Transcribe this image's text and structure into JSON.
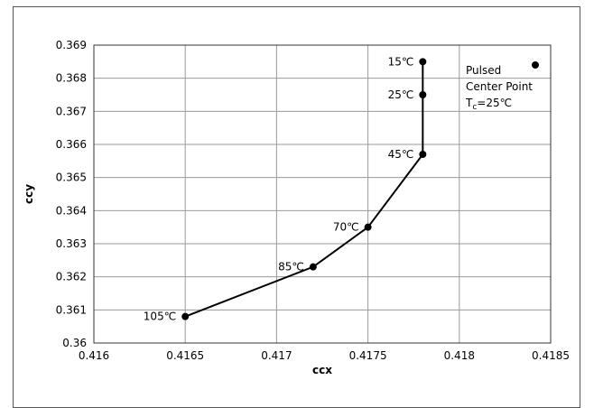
{
  "chart_data": {
    "type": "line",
    "xlabel": "ccx",
    "ylabel": "ccy",
    "xlim": [
      0.416,
      0.4185
    ],
    "ylim": [
      0.36,
      0.369
    ],
    "x_ticks": [
      "0.416",
      "0.4165",
      "0.417",
      "0.4175",
      "0.418",
      "0.4185"
    ],
    "y_ticks": [
      "0.36",
      "0.361",
      "0.362",
      "0.363",
      "0.364",
      "0.365",
      "0.366",
      "0.367",
      "0.368",
      "0.369"
    ],
    "grid": true,
    "legend_position": "top-right",
    "legend": {
      "lines": [
        "Pulsed",
        "Center Point"
      ],
      "tc_prefix": "T",
      "tc_subscript": "c",
      "tc_suffix": "=25℃"
    },
    "series": [
      {
        "name": "Pulsed Center Point T c=25℃",
        "points": [
          {
            "x": 0.4165,
            "y": 0.3608,
            "label": "105℃"
          },
          {
            "x": 0.4172,
            "y": 0.3623,
            "label": "85℃"
          },
          {
            "x": 0.4175,
            "y": 0.3635,
            "label": "70℃"
          },
          {
            "x": 0.4178,
            "y": 0.3657,
            "label": "45℃"
          },
          {
            "x": 0.4178,
            "y": 0.3675,
            "label": "25℃"
          },
          {
            "x": 0.4178,
            "y": 0.3685,
            "label": "15℃"
          }
        ]
      }
    ]
  }
}
